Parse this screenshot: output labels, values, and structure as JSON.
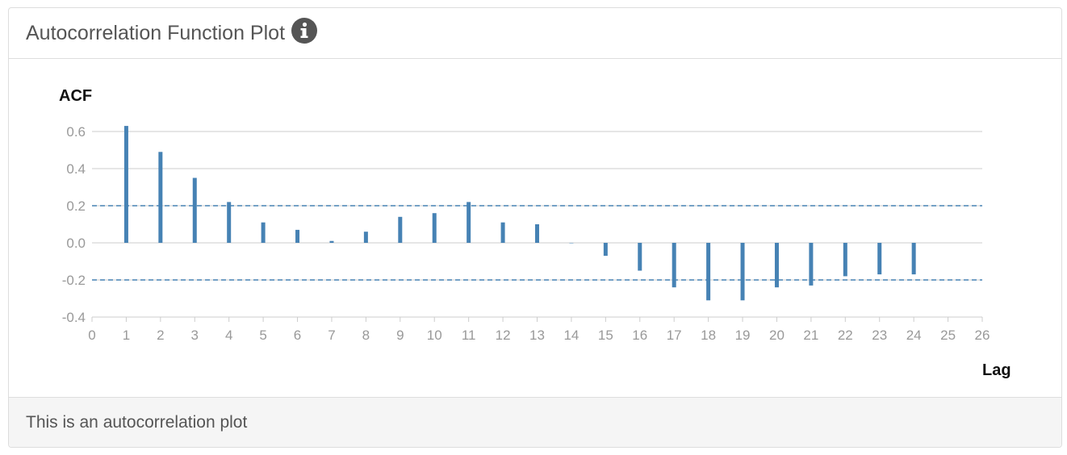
{
  "panel": {
    "title": "Autocorrelation Function Plot",
    "footer": "This is an autocorrelation plot"
  },
  "icons": {
    "info": "info-circle-icon"
  },
  "colors": {
    "bar": "#4682b4",
    "confidence": "#4682b4",
    "grid": "#cccccc",
    "zero_line": "#cccccc"
  },
  "chart_data": {
    "type": "bar",
    "ylabel": "ACF",
    "xlabel": "Lag",
    "xlim": [
      0,
      26
    ],
    "ylim": [
      -0.4,
      0.7
    ],
    "yticks": [
      0.6,
      0.4,
      0.2,
      0.0,
      -0.2,
      -0.4
    ],
    "ytick_labels": [
      "0.6",
      "0.4",
      "0.2",
      "0.0",
      "-0.2",
      "-0.4"
    ],
    "xticks": [
      0,
      1,
      2,
      3,
      4,
      5,
      6,
      7,
      8,
      9,
      10,
      11,
      12,
      13,
      14,
      15,
      16,
      17,
      18,
      19,
      20,
      21,
      22,
      23,
      24,
      25,
      26
    ],
    "confidence_band": [
      0.2,
      -0.2
    ],
    "grid": true,
    "series": [
      {
        "lags": [
          1,
          2,
          3,
          4,
          5,
          6,
          7,
          8,
          9,
          10,
          11,
          12,
          13,
          14,
          15,
          16,
          17,
          18,
          19,
          20,
          21,
          22,
          23,
          24
        ],
        "values": [
          0.63,
          0.49,
          0.35,
          0.22,
          0.11,
          0.07,
          0.01,
          0.06,
          0.14,
          0.16,
          0.22,
          0.11,
          0.1,
          0.0,
          -0.07,
          -0.15,
          -0.24,
          -0.31,
          -0.31,
          -0.24,
          -0.23,
          -0.18,
          -0.17,
          -0.17
        ]
      }
    ]
  }
}
